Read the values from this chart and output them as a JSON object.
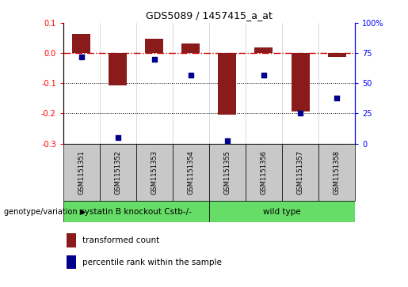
{
  "title": "GDS5089 / 1457415_a_at",
  "samples": [
    "GSM1151351",
    "GSM1151352",
    "GSM1151353",
    "GSM1151354",
    "GSM1151355",
    "GSM1151356",
    "GSM1151357",
    "GSM1151358"
  ],
  "bar_values": [
    0.063,
    -0.107,
    0.047,
    0.033,
    -0.205,
    0.02,
    -0.195,
    -0.013
  ],
  "dot_values_pct": [
    72,
    5,
    70,
    57,
    2,
    57,
    25,
    38
  ],
  "ylim_left": [
    -0.3,
    0.1
  ],
  "ylim_right": [
    0,
    100
  ],
  "bar_color": "#8B1A1A",
  "dot_color": "#00008B",
  "hline_color": "#CC0000",
  "group1_label": "cystatin B knockout Cstb-/-",
  "group2_label": "wild type",
  "group1_count": 4,
  "group2_count": 4,
  "group_color": "#66DD66",
  "sample_box_color": "#C8C8C8",
  "genotype_label": "genotype/variation",
  "legend_bar_label": "transformed count",
  "legend_dot_label": "percentile rank within the sample",
  "tick_left": [
    -0.3,
    -0.2,
    -0.1,
    0.0,
    0.1
  ],
  "tick_right": [
    0,
    25,
    50,
    75,
    100
  ],
  "bar_width": 0.5
}
